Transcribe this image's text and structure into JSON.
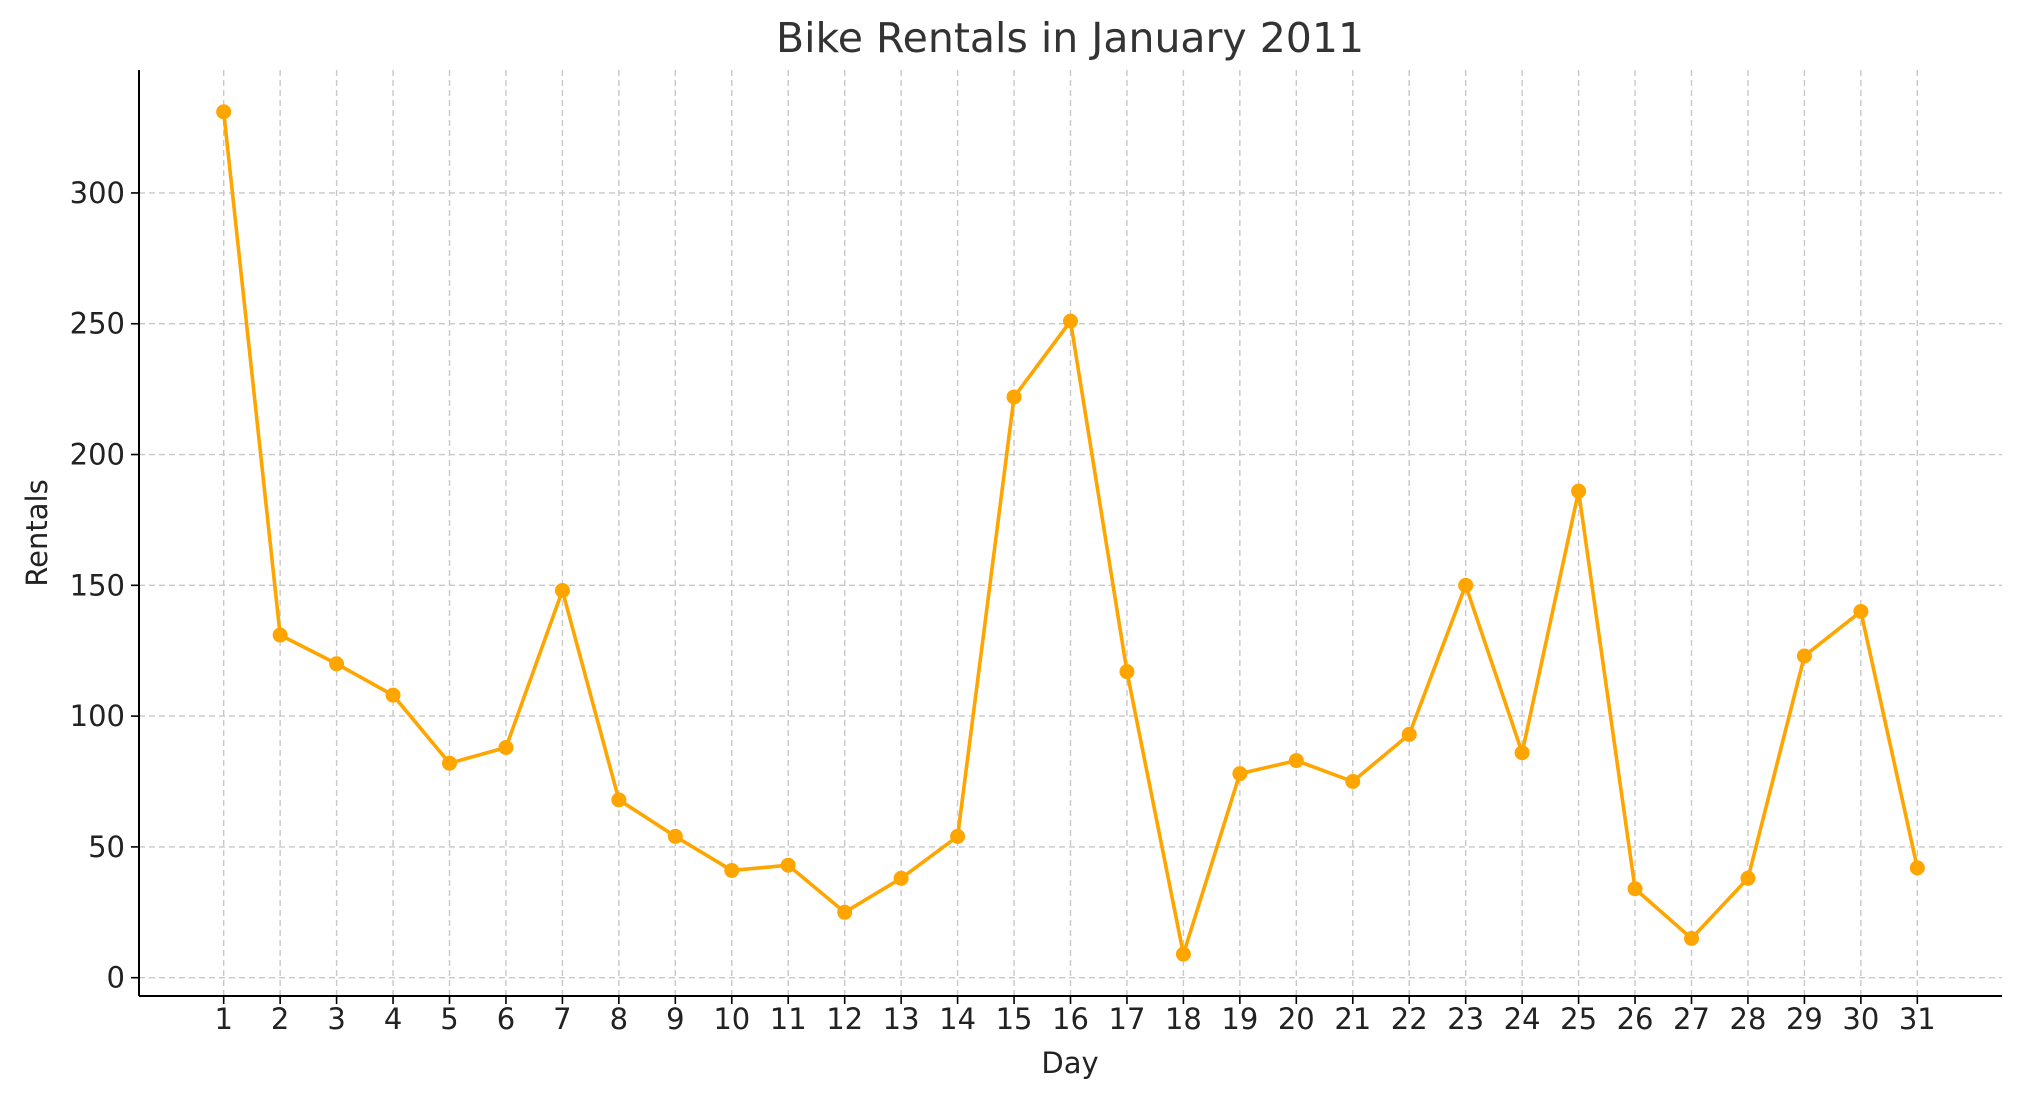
{
  "chart_data": {
    "type": "line",
    "title": "Bike Rentals in January 2011",
    "xlabel": "Day",
    "ylabel": "Rentals",
    "x": [
      1,
      2,
      3,
      4,
      5,
      6,
      7,
      8,
      9,
      10,
      11,
      12,
      13,
      14,
      15,
      16,
      17,
      18,
      19,
      20,
      21,
      22,
      23,
      24,
      25,
      26,
      27,
      28,
      29,
      30,
      31
    ],
    "xticks": [
      "1",
      "2",
      "3",
      "4",
      "5",
      "6",
      "7",
      "8",
      "9",
      "10",
      "11",
      "12",
      "13",
      "14",
      "15",
      "16",
      "17",
      "18",
      "19",
      "20",
      "21",
      "22",
      "23",
      "24",
      "25",
      "26",
      "27",
      "28",
      "29",
      "30",
      "31"
    ],
    "series": [
      {
        "values": [
          331,
          131,
          120,
          108,
          82,
          88,
          148,
          68,
          54,
          41,
          43,
          25,
          38,
          54,
          222,
          251,
          117,
          9,
          78,
          83,
          75,
          93,
          150,
          86,
          186,
          34,
          15,
          38,
          123,
          140,
          42
        ],
        "color": "#FFA500",
        "marker": "circle"
      }
    ],
    "yticks": [
      0,
      50,
      100,
      150,
      200,
      250,
      300
    ],
    "ylim": [
      -7,
      347
    ],
    "xlim": [
      -0.5,
      32.5
    ],
    "grid": true,
    "legend": "none"
  }
}
